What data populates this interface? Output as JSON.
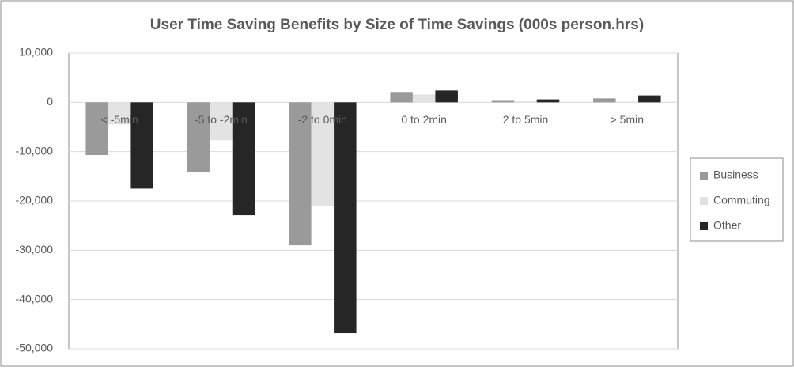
{
  "chart_data": {
    "type": "bar",
    "title": "User Time Saving Benefits by Size of Time Savings (000s person.hrs)",
    "categories": [
      "< -5min",
      "-5 to -2min",
      "-2 to 0min",
      "0 to 2min",
      "2 to 5min",
      "> 5min"
    ],
    "series": [
      {
        "name": "Business",
        "color": "#9a9a9a",
        "values": [
          -10700,
          -14100,
          -29000,
          2100,
          300,
          800
        ]
      },
      {
        "name": "Commuting",
        "color": "#e3e3e3",
        "values": [
          -4500,
          -7700,
          -21000,
          1600,
          200,
          100
        ]
      },
      {
        "name": "Other",
        "color": "#262626",
        "values": [
          -17500,
          -22900,
          -46800,
          2400,
          600,
          1400
        ]
      }
    ],
    "ylim": [
      -50000,
      10000
    ],
    "yticks": [
      {
        "value": -50000,
        "label": "-50,000"
      },
      {
        "value": -40000,
        "label": "-40,000"
      },
      {
        "value": -30000,
        "label": "-30,000"
      },
      {
        "value": -20000,
        "label": "-20,000"
      },
      {
        "value": -10000,
        "label": "-10,000"
      },
      0,
      {
        "value": 10000,
        "label": "10,000"
      }
    ],
    "grid": true,
    "legend": "right"
  }
}
